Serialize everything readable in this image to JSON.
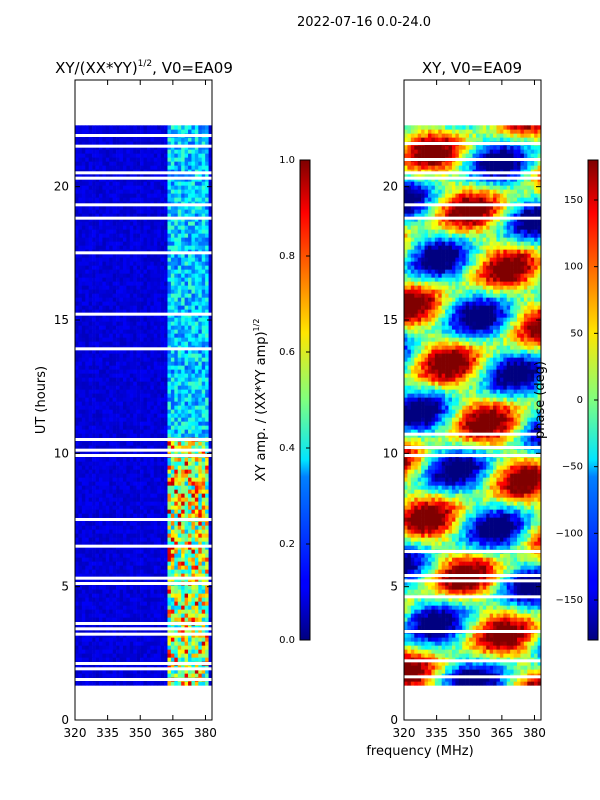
{
  "figure": {
    "suptitle": "2022-07-16 0.0-24.0",
    "shared_xlabel": "frequency (MHz)"
  },
  "chart_data": [
    {
      "type": "heatmap",
      "title_main": "XY/(XX*YY)",
      "title_sup": "1/2",
      "title_rest": ", V0=EA09",
      "xlabel": "",
      "ylabel": "UT (hours)",
      "xlim": [
        320,
        383
      ],
      "ylim": [
        0,
        24
      ],
      "xticks": [
        320,
        335,
        350,
        365,
        380
      ],
      "yticks": [
        0,
        5,
        10,
        15,
        20
      ],
      "colormap": "jet",
      "colorbar": {
        "label_main": "XY amp. / (XX*YY amp)",
        "label_sup": "1/2",
        "range": [
          0.0,
          1.0
        ],
        "ticks": [
          "0.0",
          "0.2",
          "0.4",
          "0.6",
          "0.8",
          "1.0"
        ]
      },
      "data_time_range": [
        1.3,
        22.3
      ],
      "high_band_mhz": [
        361,
        380
      ],
      "gap_hours": [
        1.5,
        1.9,
        2.1,
        3.2,
        3.4,
        3.6,
        5.1,
        5.3,
        6.5,
        7.5,
        9.9,
        10.1,
        10.5,
        13.9,
        15.2,
        17.5,
        18.8,
        19.3,
        20.3,
        20.5,
        21.5,
        21.9
      ]
    },
    {
      "type": "heatmap",
      "title": "XY, V0=EA09",
      "xlabel": "",
      "ylabel": "",
      "xlim": [
        320,
        383
      ],
      "ylim": [
        0,
        24
      ],
      "xticks": [
        320,
        335,
        350,
        365,
        380
      ],
      "yticks": [
        0,
        5,
        10,
        15,
        20
      ],
      "colormap": "jet",
      "colorbar": {
        "label": "phase (deg)",
        "range": [
          -180,
          180
        ],
        "ticks": [
          "150",
          "100",
          "50",
          "0",
          "−50",
          "−100",
          "−150"
        ],
        "tick_values": [
          150,
          100,
          50,
          0,
          -50,
          -100,
          -150
        ]
      },
      "data_time_range": [
        1.3,
        22.3
      ],
      "gap_hours": [
        1.6,
        2.2,
        3.3,
        4.6,
        5.2,
        5.4,
        6.3,
        9.9,
        10.2,
        10.7,
        18.8,
        19.3,
        20.3,
        20.5,
        21.0,
        21.6
      ]
    }
  ]
}
